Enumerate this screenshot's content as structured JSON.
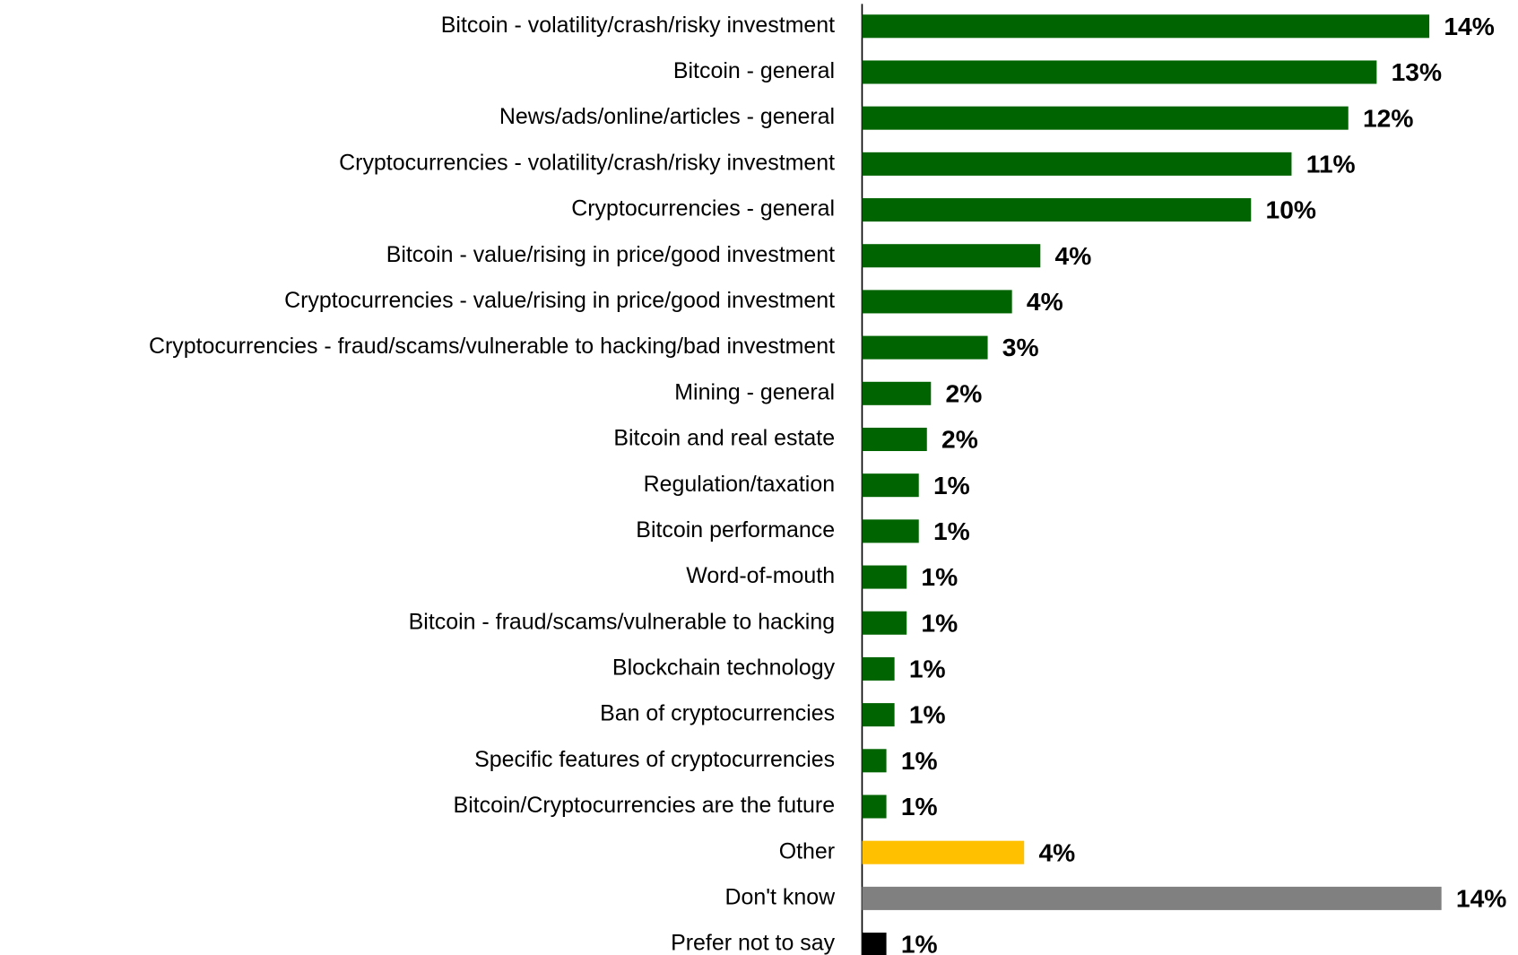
{
  "chart_data": {
    "type": "barh",
    "categories": [
      "Bitcoin - volatility/crash/risky investment",
      "Bitcoin - general",
      "News/ads/online/articles - general",
      "Cryptocurrencies - volatility/crash/risky investment",
      "Cryptocurrencies - general",
      "Bitcoin - value/rising in price/good investment",
      "Cryptocurrencies - value/rising in price/good investment",
      "Cryptocurrencies - fraud/scams/vulnerable to hacking/bad investment",
      "Mining - general",
      "Bitcoin and real estate",
      "Regulation/taxation",
      "Bitcoin performance",
      "Word-of-mouth",
      "Bitcoin - fraud/scams/vulnerable to hacking",
      "Blockchain technology",
      "Ban of cryptocurrencies",
      "Specific features of cryptocurrencies",
      "Bitcoin/Cryptocurrencies are the future",
      "Other",
      "Don't know",
      "Prefer not to say"
    ],
    "values": [
      14.0,
      12.7,
      12.0,
      10.6,
      9.6,
      4.4,
      3.7,
      3.1,
      1.7,
      1.6,
      1.4,
      1.4,
      1.1,
      1.1,
      0.8,
      0.8,
      0.6,
      0.6,
      4.0,
      14.3,
      0.6
    ],
    "value_labels": [
      "14%",
      "13%",
      "12%",
      "11%",
      "10%",
      "4%",
      "4%",
      "3%",
      "2%",
      "2%",
      "1%",
      "1%",
      "1%",
      "1%",
      "1%",
      "1%",
      "1%",
      "1%",
      "4%",
      "14%",
      "1%"
    ],
    "colors": [
      "#006400",
      "#006400",
      "#006400",
      "#006400",
      "#006400",
      "#006400",
      "#006400",
      "#006400",
      "#006400",
      "#006400",
      "#006400",
      "#006400",
      "#006400",
      "#006400",
      "#006400",
      "#006400",
      "#006400",
      "#006400",
      "#ffc000",
      "#808080",
      "#000000"
    ],
    "xlim": [
      0,
      15
    ]
  }
}
